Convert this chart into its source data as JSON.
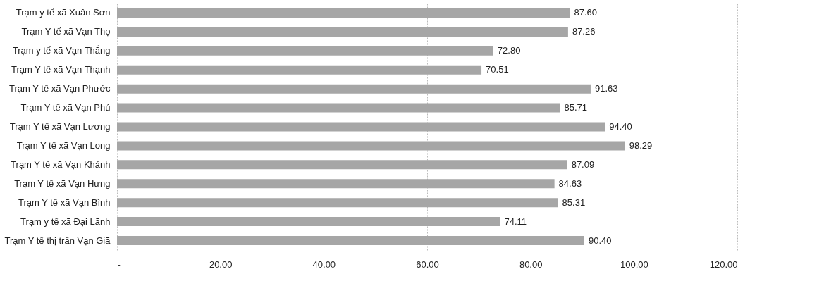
{
  "chart_data": {
    "type": "bar",
    "orientation": "horizontal",
    "categories": [
      "Trạm y tế xã Xuân Sơn",
      "Trạm Y tế xã Vạn Thọ",
      "Trạm y tế xã Vạn Thắng",
      "Trạm Y tế xã Vạn Thạnh",
      "Trạm Y tế xã Vạn Phước",
      "Trạm Y tế xã Vạn Phú",
      "Trạm Y tế xã Vạn Lương",
      "Trạm Y tế xã Vạn Long",
      "Trạm Y tế xã Vạn Khánh",
      "Trạm Y tế xã Vạn Hưng",
      "Trạm Y tế xã Vạn Bình",
      "Trạm y tế xã Đại Lãnh",
      "Trạm Y tế thị trấn Vạn Giã"
    ],
    "values": [
      87.6,
      87.26,
      72.8,
      70.51,
      91.63,
      85.71,
      94.4,
      98.29,
      87.09,
      84.63,
      85.31,
      74.11,
      90.4
    ],
    "value_labels": [
      "87.60",
      "87.26",
      "72.80",
      "70.51",
      "91.63",
      "85.71",
      "94.40",
      "98.29",
      "87.09",
      "84.63",
      "85.31",
      "74.11",
      "90.40"
    ],
    "color": "#a6a6a6",
    "xlim": [
      0,
      120
    ],
    "xticks": [
      {
        "value": 0,
        "label": "-"
      },
      {
        "value": 20,
        "label": "20.00"
      },
      {
        "value": 40,
        "label": "40.00"
      },
      {
        "value": 60,
        "label": "60.00"
      },
      {
        "value": 80,
        "label": "80.00"
      },
      {
        "value": 100,
        "label": "100.00"
      },
      {
        "value": 120,
        "label": "120.00"
      }
    ],
    "grid": "x"
  }
}
